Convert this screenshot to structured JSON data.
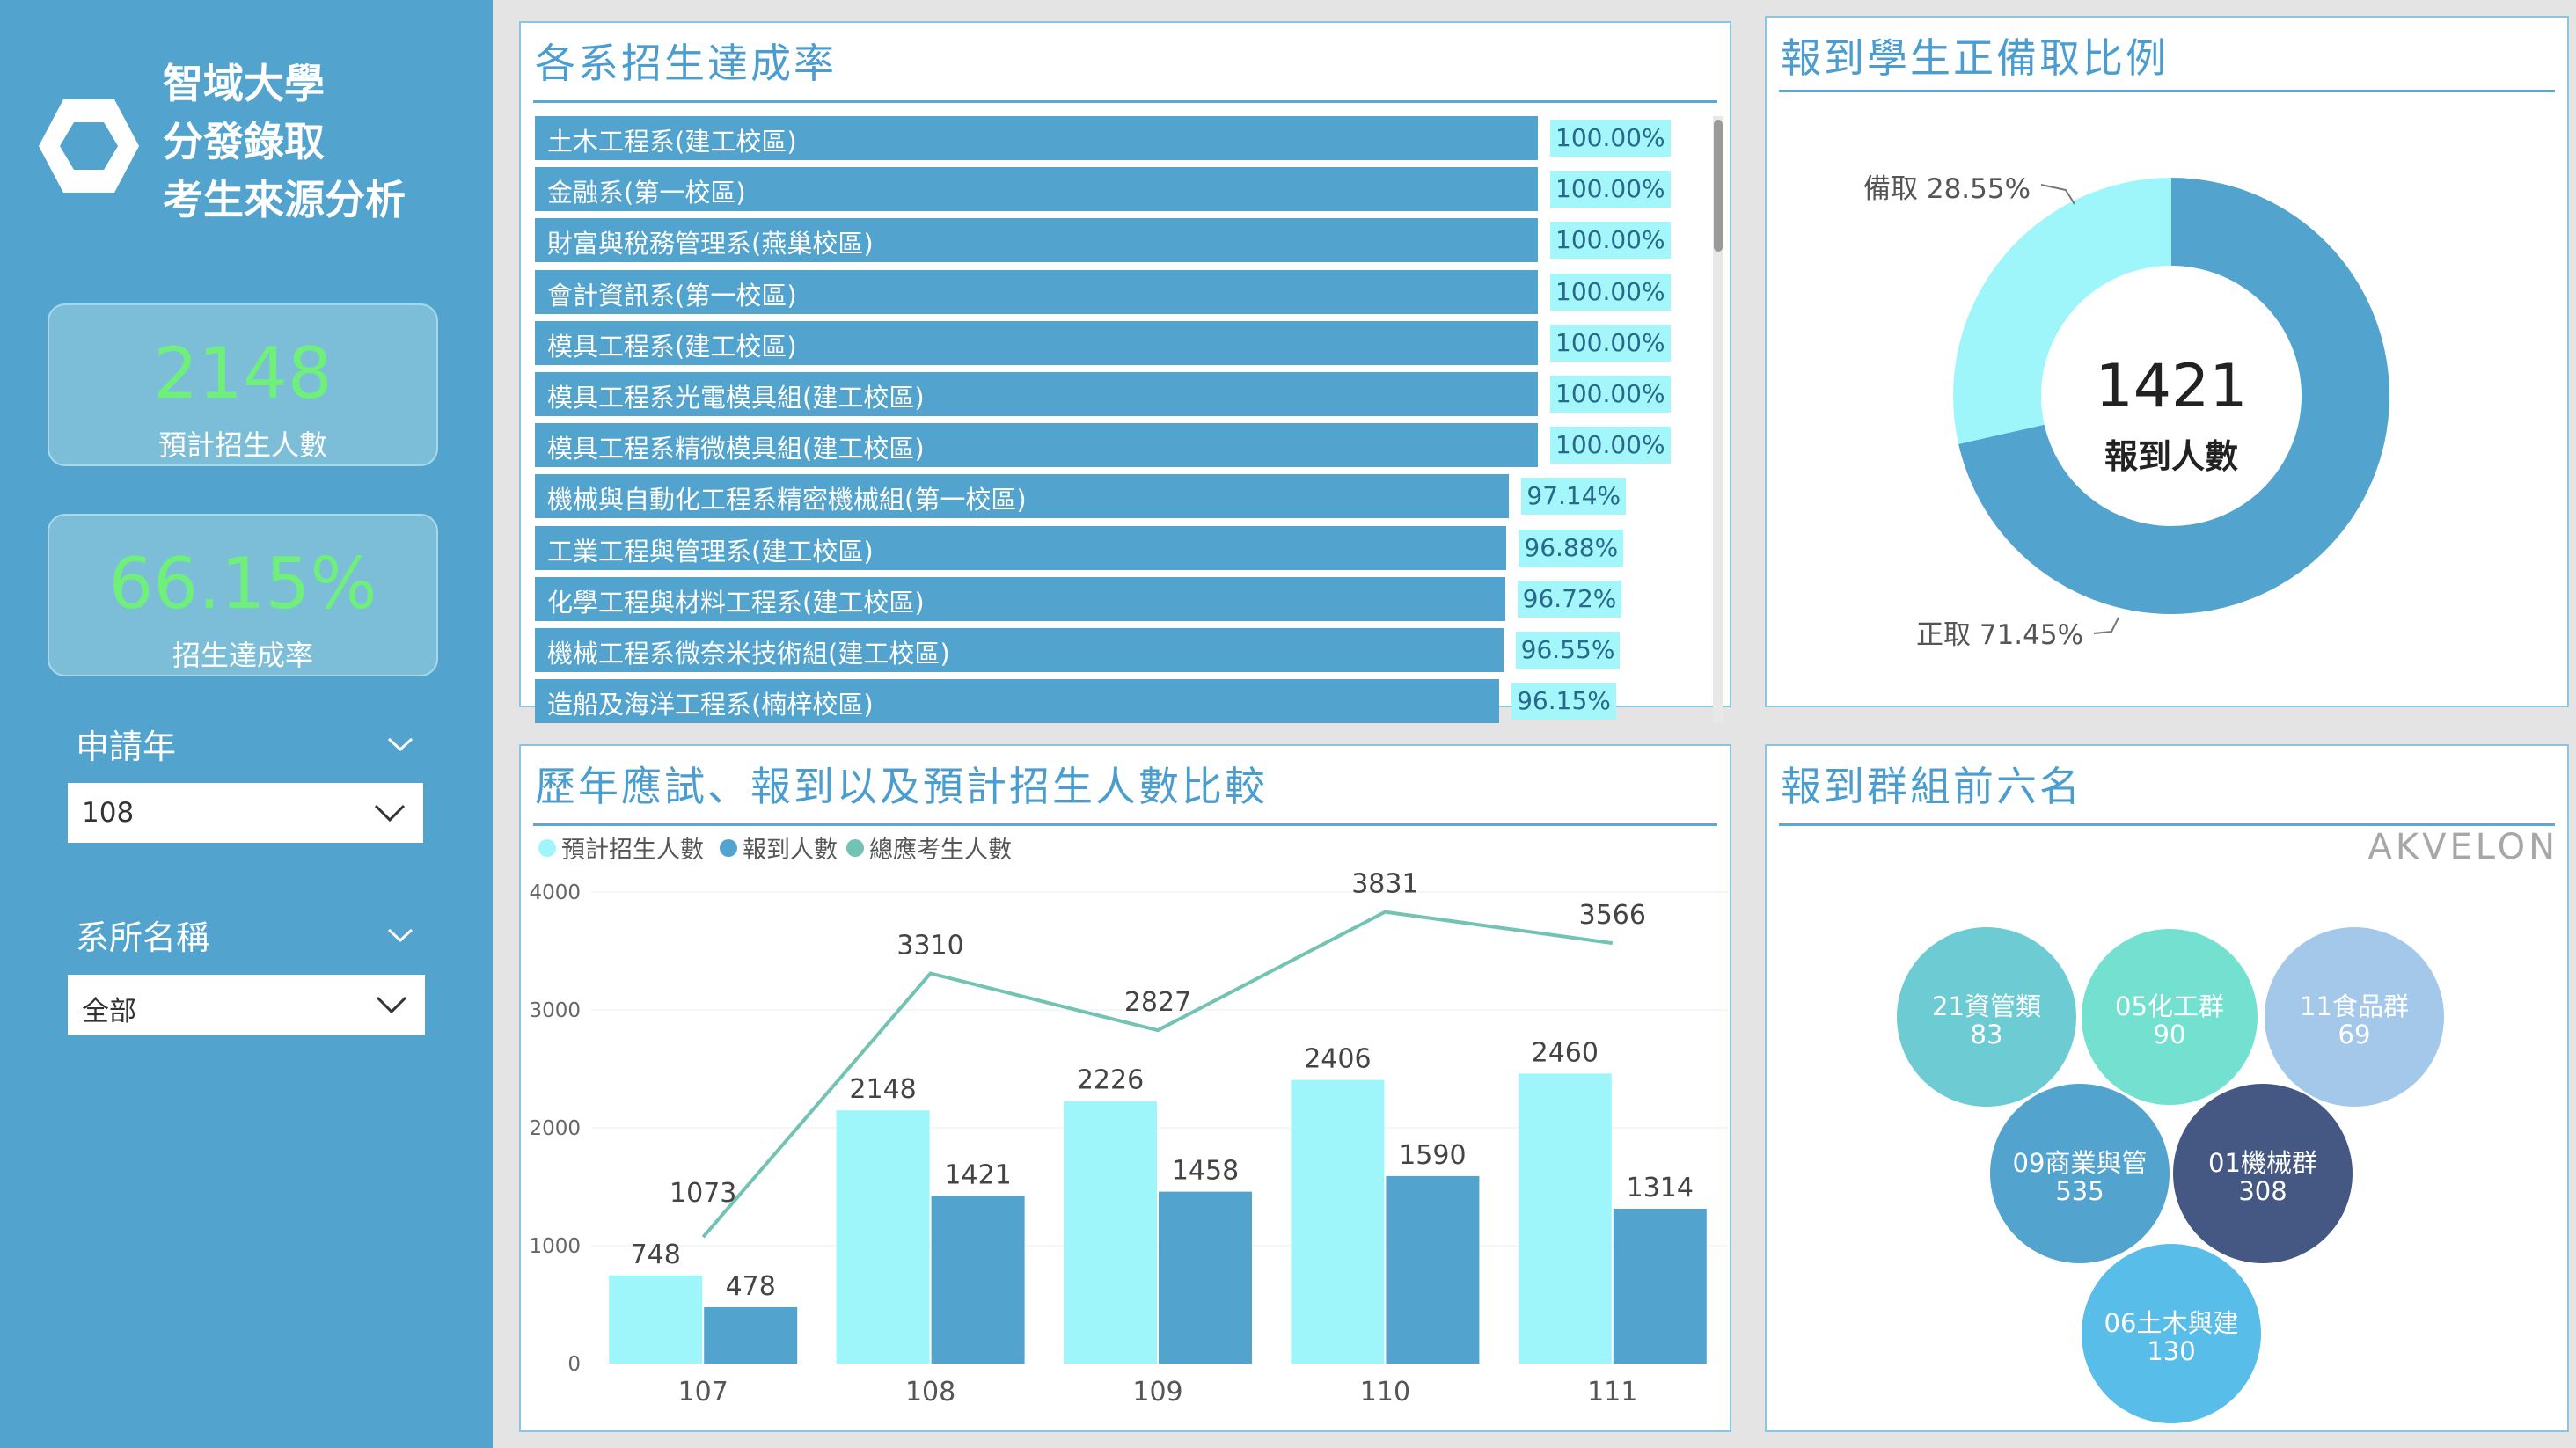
{
  "sidebar": {
    "brand_lines": [
      "智域大學",
      "分發錄取",
      "考生來源分析"
    ],
    "kpis": [
      {
        "value": "2148",
        "label": "預計招生人數"
      },
      {
        "value": "66.15%",
        "label": "招生達成率"
      }
    ],
    "slicers": [
      {
        "title": "申請年",
        "value": "108"
      },
      {
        "title": "系所名稱",
        "value": "全部"
      }
    ]
  },
  "colors": {
    "sidebar": "#52a3ce",
    "accent_title": "#4b9dcf",
    "light_cyan": "#9ef6fb",
    "mid_blue": "#52a3ce",
    "line_teal": "#72c3b3",
    "kpi_green": "#6ef07a"
  },
  "achievement": {
    "title": "各系招生達成率",
    "rows": [
      {
        "label": "土木工程系(建工校區)",
        "value": 100.0,
        "text": "100.00%"
      },
      {
        "label": "金融系(第一校區)",
        "value": 100.0,
        "text": "100.00%"
      },
      {
        "label": "財富與稅務管理系(燕巢校區)",
        "value": 100.0,
        "text": "100.00%"
      },
      {
        "label": "會計資訊系(第一校區)",
        "value": 100.0,
        "text": "100.00%"
      },
      {
        "label": "模具工程系(建工校區)",
        "value": 100.0,
        "text": "100.00%"
      },
      {
        "label": "模具工程系光電模具組(建工校區)",
        "value": 100.0,
        "text": "100.00%"
      },
      {
        "label": "模具工程系精微模具組(建工校區)",
        "value": 100.0,
        "text": "100.00%"
      },
      {
        "label": "機械與自動化工程系精密機械組(第一校區)",
        "value": 97.14,
        "text": "97.14%"
      },
      {
        "label": "工業工程與管理系(建工校區)",
        "value": 96.88,
        "text": "96.88%"
      },
      {
        "label": "化學工程與材料工程系(建工校區)",
        "value": 96.72,
        "text": "96.72%"
      },
      {
        "label": "機械工程系微奈米技術組(建工校區)",
        "value": 96.55,
        "text": "96.55%"
      },
      {
        "label": "造船及海洋工程系(楠梓校區)",
        "value": 96.15,
        "text": "96.15%"
      }
    ]
  },
  "donut": {
    "title": "報到學生正備取比例",
    "center_value": "1421",
    "center_label": "報到人數",
    "slices": [
      {
        "name": "正取",
        "pct": 71.45,
        "label": "正取 71.45%",
        "color": "#52a3ce"
      },
      {
        "name": "備取",
        "pct": 28.55,
        "label": "備取 28.55%",
        "color": "#9ef6fb"
      }
    ]
  },
  "combo": {
    "title": "歷年應試、報到以及預計招生人數比較",
    "legend": [
      {
        "name": "預計招生人數",
        "color": "#9ef6fb"
      },
      {
        "name": "報到人數",
        "color": "#52a3ce"
      },
      {
        "name": "總應考生人數",
        "color": "#72c3b3"
      }
    ]
  },
  "chart_data": {
    "type": "bar",
    "categories": [
      "107",
      "108",
      "109",
      "110",
      "111"
    ],
    "series": [
      {
        "name": "預計招生人數",
        "type": "bar",
        "values": [
          748,
          2148,
          2226,
          2406,
          2460
        ]
      },
      {
        "name": "報到人數",
        "type": "bar",
        "values": [
          478,
          1421,
          1458,
          1590,
          1314
        ]
      },
      {
        "name": "總應考生人數",
        "type": "line",
        "values": [
          1073,
          3310,
          2827,
          3831,
          3566
        ]
      }
    ],
    "yticks": [
      0,
      1000,
      2000,
      3000,
      4000
    ],
    "ylim": [
      0,
      4000
    ]
  },
  "bubbles": {
    "title": "報到群組前六名",
    "watermark": "AKVELON",
    "items": [
      {
        "name": "21資管類",
        "value": "83",
        "color": "#6ccbd3"
      },
      {
        "name": "05化工群",
        "value": "90",
        "color": "#74e0cf"
      },
      {
        "name": "11食品群",
        "value": "69",
        "color": "#a4c8ea"
      },
      {
        "name": "09商業與管",
        "value": "535",
        "color": "#52a3ce"
      },
      {
        "name": "01機械群",
        "value": "308",
        "color": "#455883"
      },
      {
        "name": "06土木與建",
        "value": "130",
        "color": "#59bde9"
      }
    ]
  }
}
